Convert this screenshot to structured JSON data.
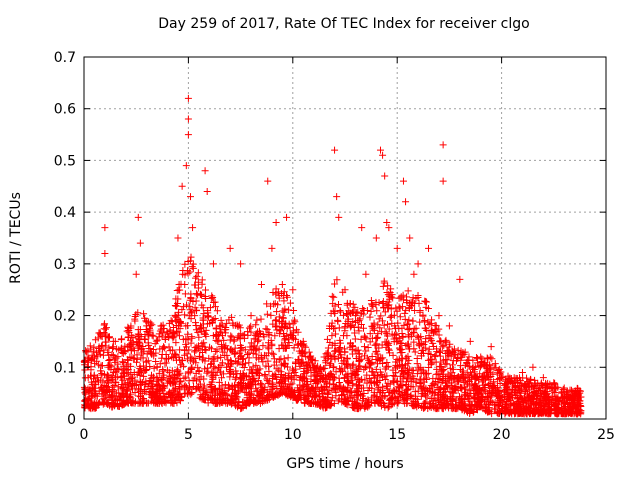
{
  "chart_data": {
    "type": "scatter",
    "title": "Day 259 of 2017, Rate Of TEC Index for receiver clgo",
    "xlabel": "GPS time / hours",
    "ylabel": "ROTI / TECUs",
    "xlim": [
      0,
      25
    ],
    "ylim": [
      0,
      0.7
    ],
    "xticks": [
      0,
      5,
      10,
      15,
      20,
      25
    ],
    "yticks": [
      0,
      0.1,
      0.2,
      0.3,
      0.4,
      0.5,
      0.6,
      0.7
    ],
    "grid": true,
    "marker": "+",
    "color": "#ff0000",
    "series": [
      {
        "points": [
          [
            0.2,
            0.08
          ],
          [
            0.5,
            0.12
          ],
          [
            0.8,
            0.06
          ],
          [
            1.0,
            0.37
          ],
          [
            1.0,
            0.32
          ],
          [
            1.2,
            0.1
          ],
          [
            1.5,
            0.15
          ],
          [
            1.8,
            0.08
          ],
          [
            2.2,
            0.12
          ],
          [
            2.5,
            0.28
          ],
          [
            2.6,
            0.39
          ],
          [
            2.7,
            0.34
          ],
          [
            3.0,
            0.18
          ],
          [
            3.5,
            0.1
          ],
          [
            3.8,
            0.08
          ],
          [
            4.2,
            0.12
          ],
          [
            4.5,
            0.35
          ],
          [
            4.7,
            0.45
          ],
          [
            4.9,
            0.49
          ],
          [
            5.0,
            0.62
          ],
          [
            5.0,
            0.58
          ],
          [
            5.0,
            0.55
          ],
          [
            5.1,
            0.43
          ],
          [
            5.2,
            0.37
          ],
          [
            5.3,
            0.2
          ],
          [
            5.8,
            0.48
          ],
          [
            5.9,
            0.44
          ],
          [
            6.2,
            0.3
          ],
          [
            6.5,
            0.18
          ],
          [
            7.0,
            0.33
          ],
          [
            7.5,
            0.3
          ],
          [
            8.0,
            0.2
          ],
          [
            8.5,
            0.26
          ],
          [
            8.8,
            0.46
          ],
          [
            9.0,
            0.33
          ],
          [
            9.2,
            0.38
          ],
          [
            9.5,
            0.26
          ],
          [
            9.7,
            0.39
          ],
          [
            10.0,
            0.25
          ],
          [
            10.5,
            0.15
          ],
          [
            11.0,
            0.1
          ],
          [
            11.5,
            0.12
          ],
          [
            12.0,
            0.52
          ],
          [
            12.1,
            0.43
          ],
          [
            12.2,
            0.39
          ],
          [
            12.5,
            0.25
          ],
          [
            12.8,
            0.18
          ],
          [
            13.0,
            0.2
          ],
          [
            13.3,
            0.37
          ],
          [
            13.5,
            0.28
          ],
          [
            14.0,
            0.35
          ],
          [
            14.2,
            0.52
          ],
          [
            14.3,
            0.51
          ],
          [
            14.4,
            0.47
          ],
          [
            14.5,
            0.38
          ],
          [
            14.6,
            0.37
          ],
          [
            15.0,
            0.33
          ],
          [
            15.3,
            0.46
          ],
          [
            15.4,
            0.42
          ],
          [
            15.6,
            0.35
          ],
          [
            15.8,
            0.28
          ],
          [
            16.0,
            0.3
          ],
          [
            16.5,
            0.33
          ],
          [
            17.0,
            0.2
          ],
          [
            17.2,
            0.53
          ],
          [
            17.2,
            0.46
          ],
          [
            17.5,
            0.18
          ],
          [
            18.0,
            0.27
          ],
          [
            18.5,
            0.15
          ],
          [
            19.0,
            0.12
          ],
          [
            19.5,
            0.14
          ],
          [
            20.0,
            0.08
          ],
          [
            20.5,
            0.07
          ],
          [
            21.0,
            0.09
          ],
          [
            21.5,
            0.1
          ],
          [
            22.0,
            0.08
          ],
          [
            22.5,
            0.07
          ],
          [
            23.0,
            0.06
          ],
          [
            23.5,
            0.05
          ]
        ]
      }
    ],
    "envelope": {
      "x": [
        0,
        0.5,
        1,
        1.5,
        2,
        2.5,
        3,
        3.5,
        4,
        4.5,
        5,
        5.5,
        6,
        6.5,
        7,
        7.5,
        8,
        8.5,
        9,
        9.5,
        10,
        10.5,
        11,
        11.5,
        12,
        12.5,
        13,
        13.5,
        14,
        14.5,
        15,
        15.5,
        16,
        16.5,
        17,
        17.5,
        18,
        18.5,
        19,
        19.5,
        20,
        20.5,
        21,
        21.5,
        22,
        22.5,
        23,
        23.5
      ],
      "y_low": [
        0.02,
        0.02,
        0.03,
        0.02,
        0.03,
        0.03,
        0.03,
        0.03,
        0.03,
        0.03,
        0.05,
        0.04,
        0.03,
        0.03,
        0.03,
        0.02,
        0.03,
        0.03,
        0.04,
        0.05,
        0.04,
        0.03,
        0.03,
        0.02,
        0.03,
        0.03,
        0.02,
        0.02,
        0.03,
        0.02,
        0.03,
        0.03,
        0.02,
        0.02,
        0.02,
        0.02,
        0.02,
        0.01,
        0.02,
        0.01,
        0.01,
        0.01,
        0.01,
        0.01,
        0.01,
        0.01,
        0.01,
        0.01
      ],
      "y_high": [
        0.13,
        0.15,
        0.2,
        0.16,
        0.17,
        0.22,
        0.2,
        0.17,
        0.2,
        0.26,
        0.32,
        0.3,
        0.26,
        0.2,
        0.2,
        0.18,
        0.18,
        0.2,
        0.25,
        0.26,
        0.22,
        0.15,
        0.12,
        0.1,
        0.28,
        0.24,
        0.22,
        0.22,
        0.25,
        0.28,
        0.23,
        0.25,
        0.26,
        0.22,
        0.18,
        0.15,
        0.14,
        0.12,
        0.12,
        0.12,
        0.09,
        0.08,
        0.08,
        0.08,
        0.07,
        0.07,
        0.06,
        0.06
      ]
    }
  }
}
